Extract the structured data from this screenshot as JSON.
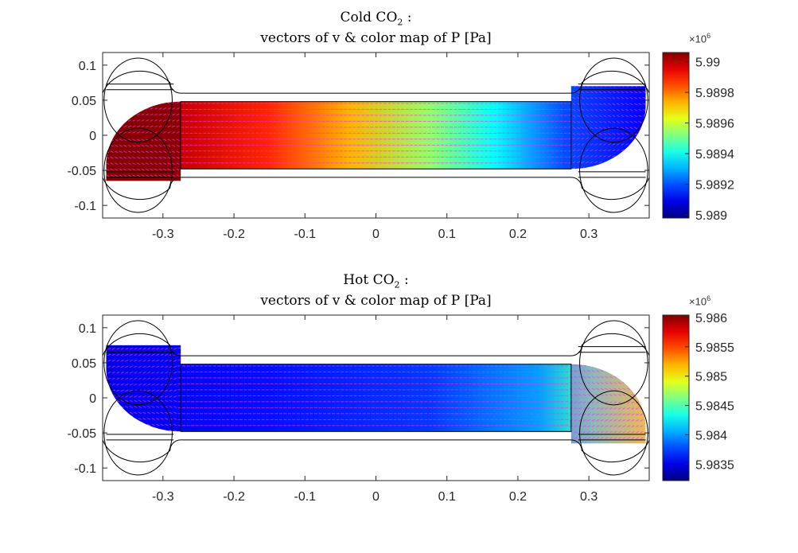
{
  "chart_data": [
    {
      "type": "heatmap",
      "title_line1_pre": "Cold CO",
      "title_line1_sub": "2",
      "title_line1_post": " :",
      "title_line2": "vectors of v & color map of P [Pa]",
      "x_ticks": [
        "-0.3",
        "-0.2",
        "-0.1",
        "0",
        "0.1",
        "0.2",
        "0.3"
      ],
      "x_tick_values": [
        -0.3,
        -0.2,
        -0.1,
        0,
        0.1,
        0.2,
        0.3
      ],
      "y_ticks": [
        "0.1",
        "0.05",
        "0",
        "-0.05",
        "-0.1"
      ],
      "y_tick_values": [
        0.1,
        0.05,
        0,
        -0.05,
        -0.1
      ],
      "xlim": [
        -0.385,
        0.385
      ],
      "ylim": [
        -0.118,
        0.118
      ],
      "colorbar": {
        "exponent_label": "×10",
        "exponent_power": "6",
        "ticks": [
          "5.99",
          "5.9898",
          "5.9896",
          "5.9894",
          "5.9892",
          "5.989"
        ],
        "tick_values": [
          5.99,
          5.9898,
          5.9896,
          5.9894,
          5.9892,
          5.989
        ],
        "range": [
          5.98898,
          5.99006
        ]
      },
      "flow": "left-to-right",
      "pressure_trend": "decreasing from left (~5.99006e6) to right (~5.98895e6)"
    },
    {
      "type": "heatmap",
      "title_line1_pre": "Hot CO",
      "title_line1_sub": "2",
      "title_line1_post": " :",
      "title_line2": "vectors of v & color map of P [Pa]",
      "x_ticks": [
        "-0.3",
        "-0.2",
        "-0.1",
        "0",
        "0.1",
        "0.2",
        "0.3"
      ],
      "x_tick_values": [
        -0.3,
        -0.2,
        -0.1,
        0,
        0.1,
        0.2,
        0.3
      ],
      "y_ticks": [
        "0.1",
        "0.05",
        "0",
        "-0.05",
        "-0.1"
      ],
      "y_tick_values": [
        0.1,
        0.05,
        0,
        -0.05,
        -0.1
      ],
      "xlim": [
        -0.385,
        0.385
      ],
      "ylim": [
        -0.118,
        0.118
      ],
      "colorbar": {
        "exponent_label": "×10",
        "exponent_power": "6",
        "ticks": [
          "5.986",
          "5.9855",
          "5.985",
          "5.9845",
          "5.984",
          "5.9835"
        ],
        "tick_values": [
          5.986,
          5.9855,
          5.985,
          5.9845,
          5.984,
          5.9835
        ],
        "range": [
          5.98322,
          5.98604
        ]
      },
      "flow": "right-to-left",
      "pressure_trend": "nearly uniform ~5.9836e6 with slight rise toward right inlet"
    }
  ],
  "colors": {
    "vector": "#ff2bff",
    "outline": "#000000",
    "axis": "#262626"
  }
}
